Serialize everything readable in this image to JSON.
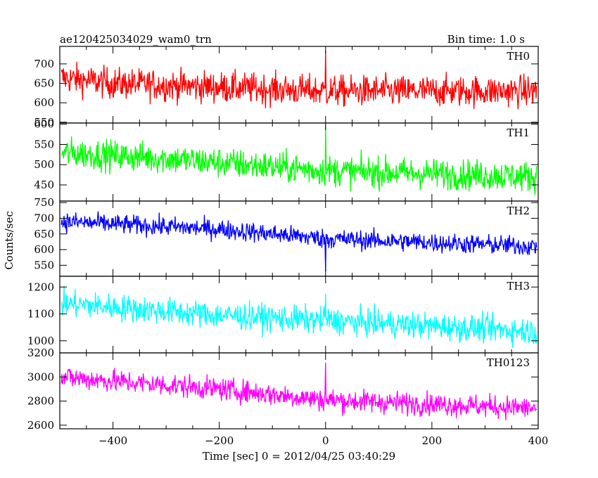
{
  "header": {
    "title": "ae120425034029_wam0_trn",
    "bin_time": "Bin time: 1.0 s"
  },
  "chart_data": {
    "type": "line",
    "title": "ae120425034029_wam0_trn",
    "subtitle": "Bin time: 1.0 s",
    "xlabel": "Time [sec] 0 = 2012/04/25 03:40:29",
    "ylabel": "Counts/sec",
    "xlim": [
      -500,
      400
    ],
    "xticks": [
      -400,
      -200,
      0,
      200,
      400
    ],
    "x_step": 1,
    "grid": false,
    "panels": [
      {
        "name": "TH0",
        "color": "#ff0000",
        "ylim": [
          548,
          745
        ],
        "yticks": [
          550,
          600,
          650,
          700
        ],
        "trend": [
          [
            -500,
            665
          ],
          [
            -400,
            650
          ],
          [
            0,
            630
          ],
          [
            400,
            630
          ]
        ],
        "noise": 36,
        "spikes": [
          [
            0,
            735
          ]
        ]
      },
      {
        "name": "TH1",
        "color": "#00ff00",
        "ylim": [
          410,
          603
        ],
        "yticks": [
          450,
          500,
          550,
          600
        ],
        "trend": [
          [
            -500,
            530
          ],
          [
            -300,
            515
          ],
          [
            0,
            485
          ],
          [
            400,
            470
          ]
        ],
        "noise": 34,
        "spikes": [
          [
            0,
            600
          ]
        ]
      },
      {
        "name": "TH2",
        "color": "#0000ff",
        "ylim": [
          515,
          755
        ],
        "yticks": [
          550,
          600,
          650,
          700,
          750
        ],
        "trend": [
          [
            -500,
            690
          ],
          [
            -200,
            665
          ],
          [
            0,
            635
          ],
          [
            400,
            610
          ]
        ],
        "noise": 28,
        "spikes": [
          [
            0,
            530
          ]
        ]
      },
      {
        "name": "TH3",
        "color": "#00ffff",
        "ylim": [
          955,
          1240
        ],
        "yticks": [
          1000,
          1100,
          1200
        ],
        "trend": [
          [
            -500,
            1140
          ],
          [
            -200,
            1095
          ],
          [
            0,
            1075
          ],
          [
            400,
            1035
          ]
        ],
        "noise": 45,
        "spikes": [
          [
            0,
            1175
          ]
        ]
      },
      {
        "name": "TH0123",
        "color": "#ff00ff",
        "ylim": [
          2570,
          3200
        ],
        "yticks": [
          2600,
          2800,
          3000,
          3200
        ],
        "trend": [
          [
            -500,
            3000
          ],
          [
            -200,
            2900
          ],
          [
            0,
            2810
          ],
          [
            400,
            2740
          ]
        ],
        "noise": 85,
        "spikes": [
          [
            0,
            3120
          ]
        ]
      }
    ]
  }
}
